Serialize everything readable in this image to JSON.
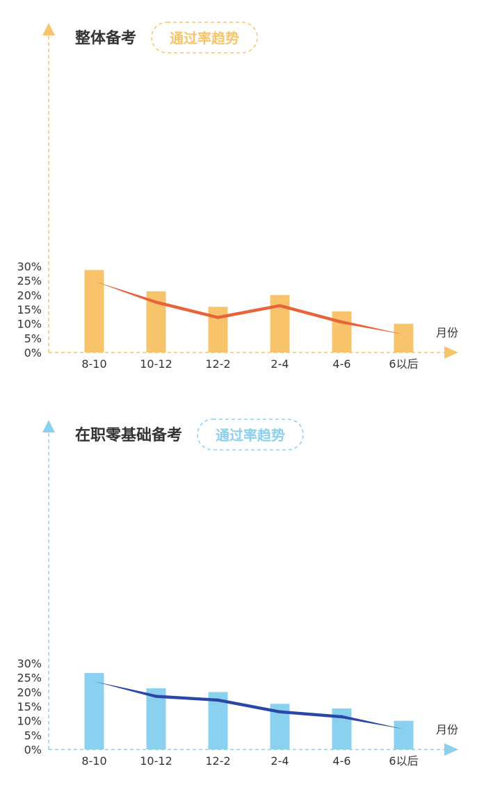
{
  "chart_data": [
    {
      "type": "bar",
      "title": "整体备考",
      "subtitle": "通过率趋势",
      "xlabel": "月份",
      "ylabel": "",
      "categories": [
        "8-10",
        "10-12",
        "12-2",
        "2-4",
        "4-6",
        "6以后"
      ],
      "yticks": [
        "0%",
        "5%",
        "10%",
        "15%",
        "20%",
        "25%",
        "30%"
      ],
      "ylim": [
        0,
        30
      ],
      "series": [
        {
          "type": "bar",
          "values": [
            28.7,
            21.3,
            15.9,
            20.0,
            14.3,
            10.0
          ]
        },
        {
          "type": "line",
          "values": [
            24.8,
            17.5,
            12.2,
            16.3,
            10.6,
            6.3
          ]
        }
      ],
      "colors": {
        "bar": "#f7c46c",
        "line": "#e8623a",
        "axis": "#f7c46c",
        "badge": "#f7c46c"
      },
      "grid": false,
      "legend": "none"
    },
    {
      "type": "bar",
      "title": "在职零基础备考",
      "subtitle": "通过率趋势",
      "xlabel": "月份",
      "ylabel": "",
      "categories": [
        "8-10",
        "10-12",
        "12-2",
        "2-4",
        "4-6",
        "6以后"
      ],
      "yticks": [
        "0%",
        "5%",
        "10%",
        "15%",
        "20%",
        "25%",
        "30%"
      ],
      "ylim": [
        0,
        30
      ],
      "series": [
        {
          "type": "bar",
          "values": [
            26.6,
            21.3,
            20.0,
            15.9,
            14.3,
            10.0
          ]
        },
        {
          "type": "line",
          "values": [
            23.7,
            18.5,
            17.2,
            13.1,
            11.4,
            7.1
          ]
        }
      ],
      "colors": {
        "bar": "#8ad0ef",
        "line": "#2a47a8",
        "axis": "#8ad0ef",
        "badge": "#8ad0ef"
      },
      "grid": false,
      "legend": "none"
    }
  ]
}
